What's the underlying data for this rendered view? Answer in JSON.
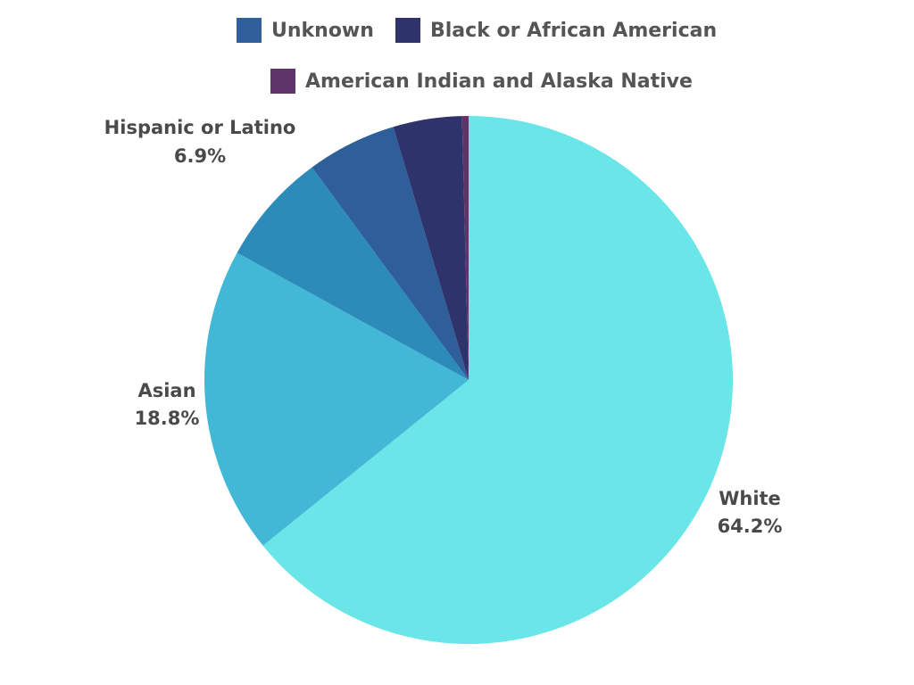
{
  "chart_data": {
    "type": "pie",
    "title": "",
    "slices": [
      {
        "label": "White",
        "value": 64.2,
        "value_label": "64.2%",
        "color": "#6ae5e8",
        "labeled": true
      },
      {
        "label": "Asian",
        "value": 18.8,
        "value_label": "18.8%",
        "color": "#42b8d6",
        "labeled": true
      },
      {
        "label": "Hispanic or Latino",
        "value": 6.9,
        "value_label": "6.9%",
        "color": "#2d8bb9",
        "labeled": true
      },
      {
        "label": "Unknown",
        "value": 5.5,
        "color": "#2e5f98",
        "labeled": false
      },
      {
        "label": "Black or African American",
        "value": 4.2,
        "color": "#2f336b",
        "labeled": false
      },
      {
        "label": "American Indian and Alaska Native",
        "value": 0.4,
        "color": "#5e3568",
        "labeled": false
      }
    ],
    "legend": {
      "placement": "top",
      "entries": [
        "Unknown",
        "Black or African American",
        "American Indian and Alaska Native"
      ]
    },
    "start_angle_deg": 0,
    "direction": "clockwise"
  }
}
